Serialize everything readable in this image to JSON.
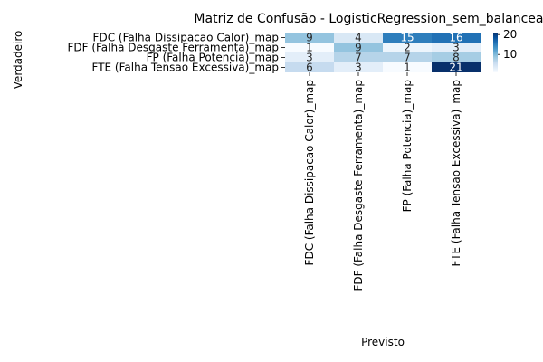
{
  "chart_data": {
    "type": "heatmap",
    "title": "Matriz de Confusão - LogisticRegression_sem_balanceamen",
    "xlabel": "Previsto",
    "ylabel": "Verdadeiro",
    "row_labels": [
      "FDC (Falha Dissipacao Calor)_map",
      "FDF (Falha Desgaste Ferramenta)_map",
      "FP (Falha Potencia)_map",
      "FTE (Falha Tensao Excessiva)_map"
    ],
    "col_labels": [
      "FDC (Falha Dissipacao Calor)_map",
      "FDF (Falha Desgaste Ferramenta)_map",
      "FP (Falha Potencia)_map",
      "FTE (Falha Tensao Excessiva)_map"
    ],
    "values": [
      [
        9,
        4,
        15,
        16
      ],
      [
        1,
        9,
        2,
        3
      ],
      [
        3,
        7,
        7,
        8
      ],
      [
        6,
        3,
        1,
        21
      ]
    ],
    "colormap": "Blues",
    "vmin": 1,
    "vmax": 21,
    "colorbar_ticks": [
      10,
      20
    ],
    "colorbar_tick_labels": [
      "10",
      "20"
    ]
  }
}
